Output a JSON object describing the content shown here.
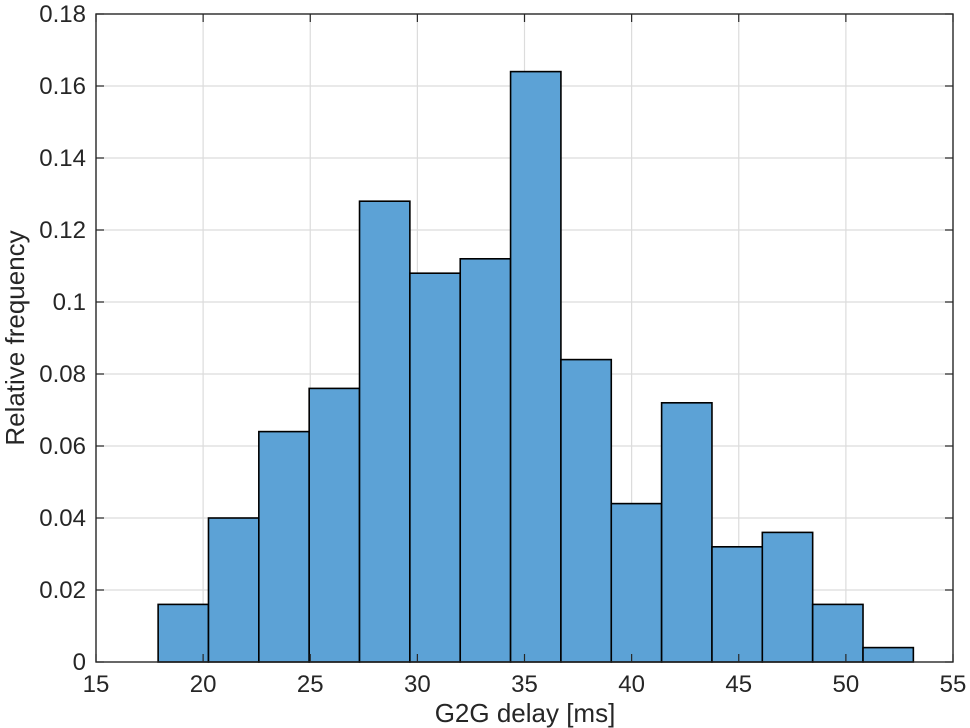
{
  "chart_data": {
    "type": "bar",
    "subtype": "histogram",
    "title": "",
    "xlabel": "G2G delay [ms]",
    "ylabel": "Relative frequency",
    "xlim": [
      15,
      55
    ],
    "ylim": [
      0,
      0.18
    ],
    "xticks": [
      15,
      20,
      25,
      30,
      35,
      40,
      45,
      50,
      55
    ],
    "xtick_labels": [
      "15",
      "20",
      "25",
      "30",
      "35",
      "40",
      "45",
      "50",
      "55"
    ],
    "yticks": [
      0,
      0.02,
      0.04,
      0.06,
      0.08,
      0.1,
      0.12,
      0.14,
      0.16,
      0.18
    ],
    "ytick_labels": [
      "0",
      "0.02",
      "0.04",
      "0.06",
      "0.08",
      "0.1",
      "0.12",
      "0.14",
      "0.16",
      "0.18"
    ],
    "grid": true,
    "bar_color": "#5ca2d6",
    "edge_color": "#000000",
    "bin_edges": [
      17.9,
      20.25,
      22.6,
      24.95,
      27.3,
      29.65,
      32.0,
      34.35,
      36.7,
      39.05,
      41.4,
      43.75,
      46.1,
      48.45,
      50.8,
      53.15
    ],
    "values": [
      0.016,
      0.04,
      0.064,
      0.076,
      0.128,
      0.108,
      0.112,
      0.164,
      0.084,
      0.044,
      0.072,
      0.032,
      0.036,
      0.016,
      0.004
    ]
  }
}
